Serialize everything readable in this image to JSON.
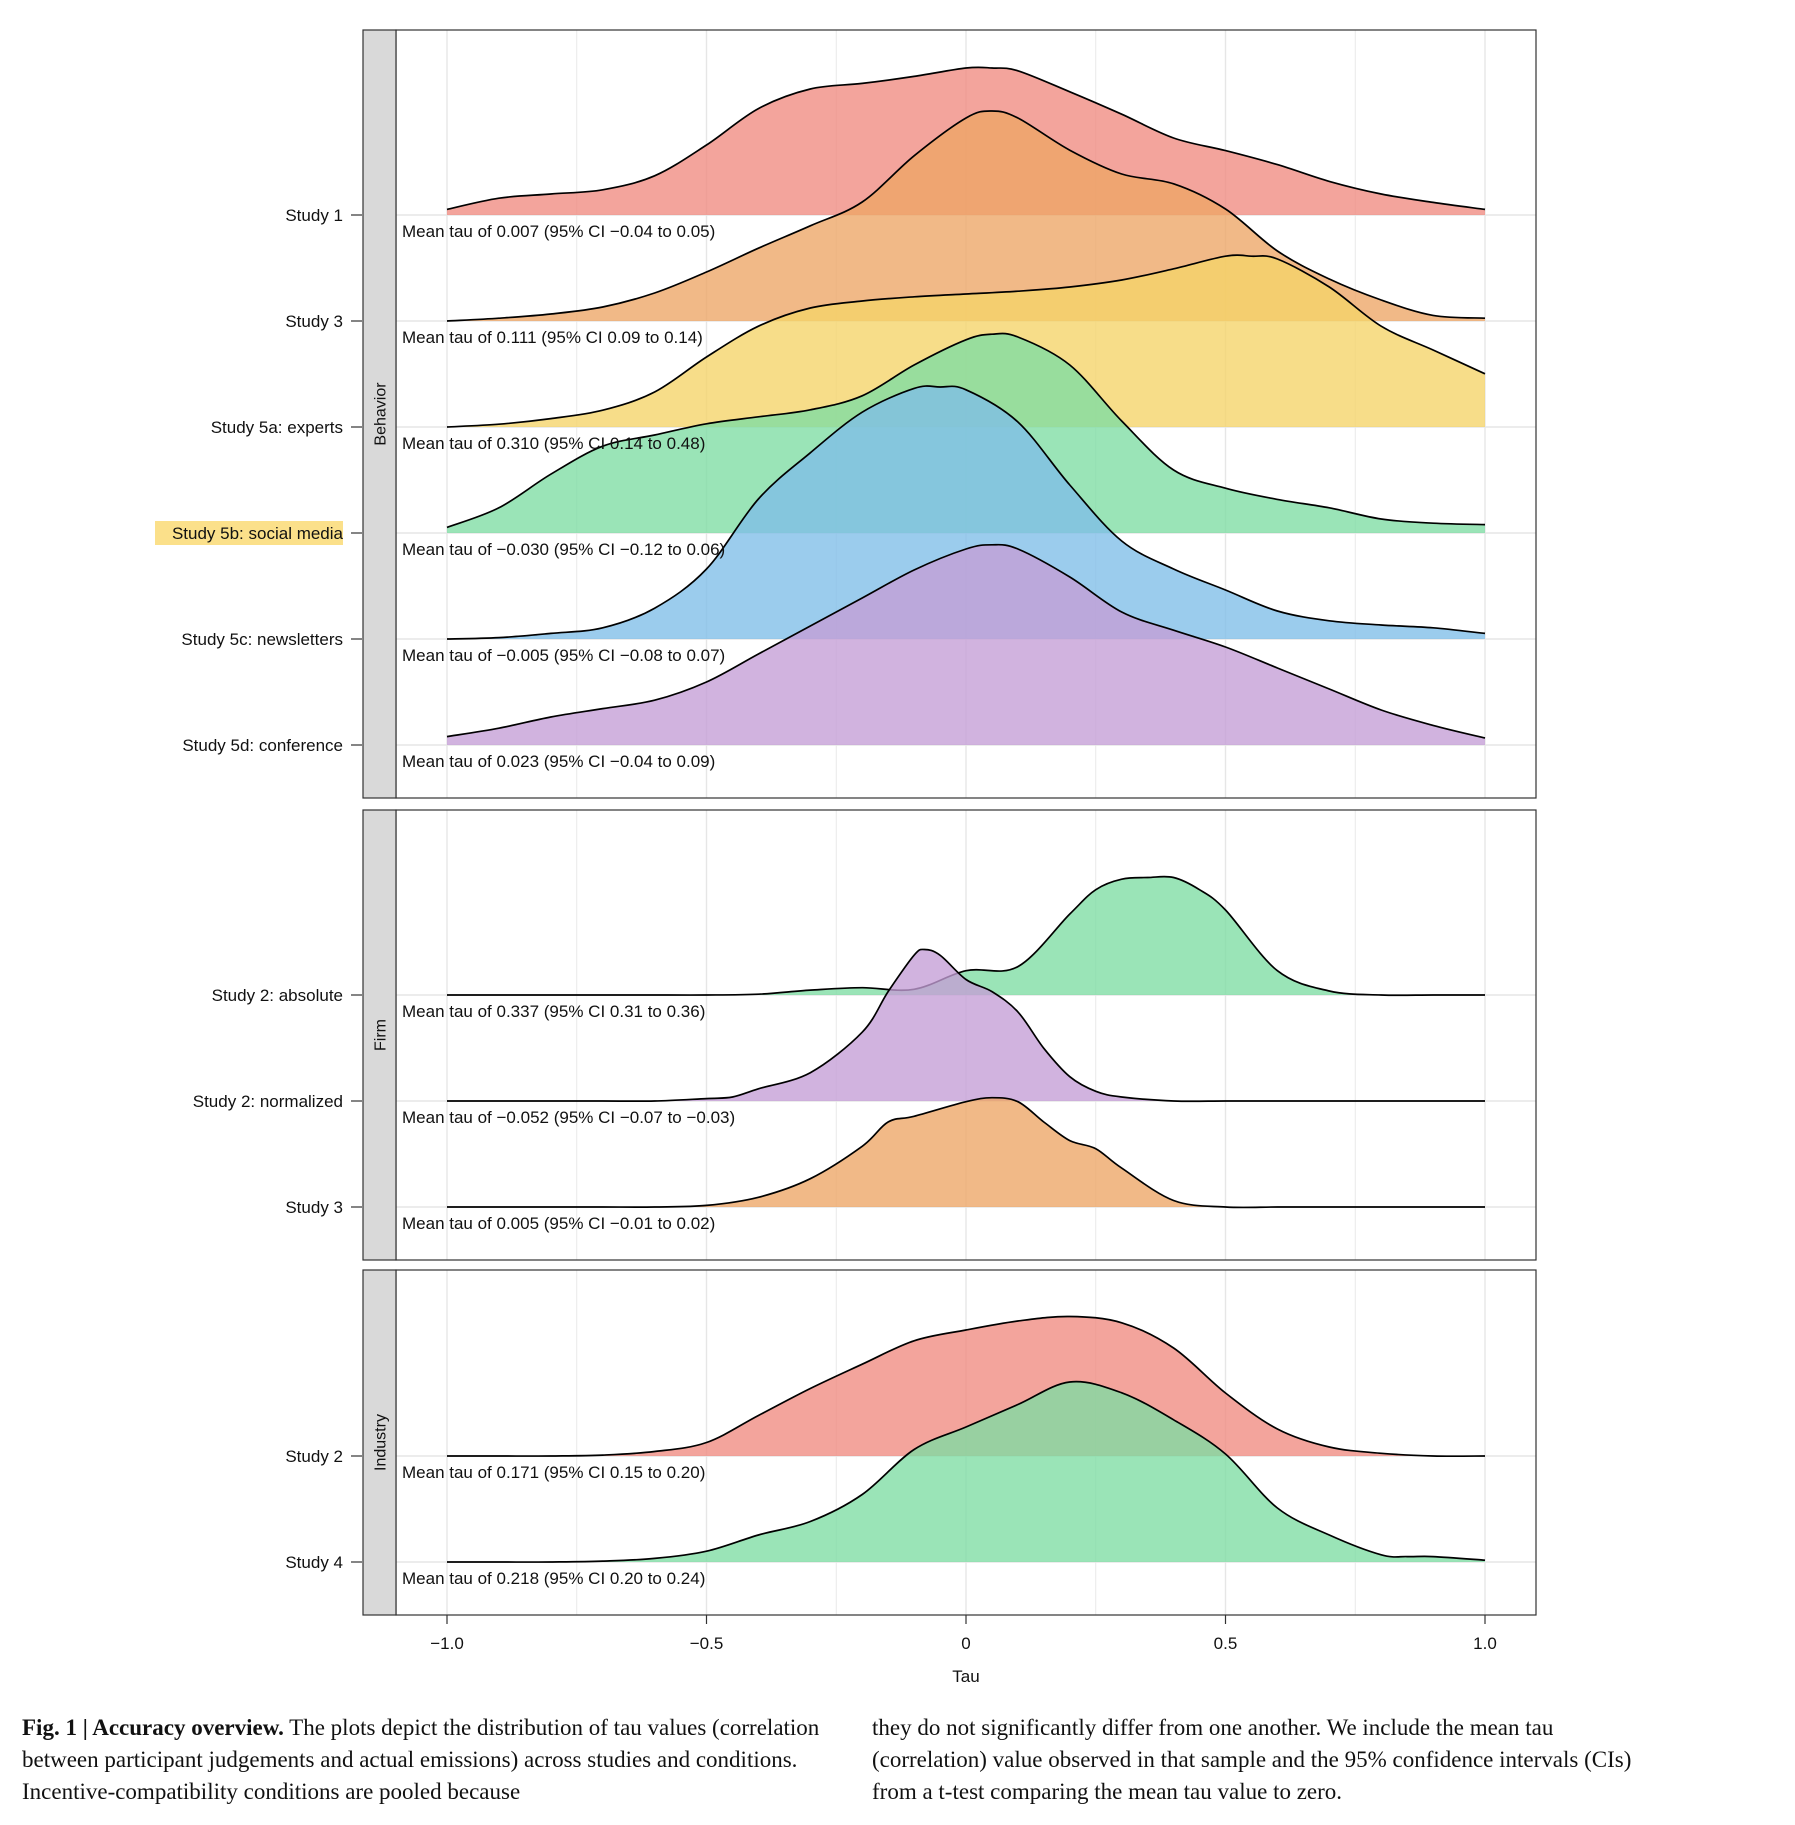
{
  "chart_data": {
    "type": "ridgeline",
    "xlabel": "Tau",
    "xlim": [
      -1.0,
      1.0
    ],
    "x_ticks": [
      "−1.0",
      "−0.5",
      "0",
      "0.5",
      "1.0"
    ],
    "x_tick_values": [
      -1.0,
      -0.5,
      0,
      0.5,
      1.0
    ],
    "grid": true,
    "panels": [
      {
        "strip": "Behavior",
        "rows": [
          {
            "label": "Study 1",
            "color": "#F08A80",
            "annotation": "Mean tau of 0.007 (95% CI −0.04 to 0.05)",
            "x": [
              -1.0,
              -0.9,
              -0.8,
              -0.7,
              -0.6,
              -0.5,
              -0.4,
              -0.3,
              -0.2,
              -0.1,
              0.0,
              0.05,
              0.1,
              0.2,
              0.3,
              0.4,
              0.5,
              0.6,
              0.7,
              0.8,
              0.9,
              1.0
            ],
            "y": [
              0.04,
              0.12,
              0.15,
              0.18,
              0.28,
              0.5,
              0.76,
              0.9,
              0.94,
              0.99,
              1.05,
              1.05,
              1.03,
              0.88,
              0.72,
              0.55,
              0.46,
              0.36,
              0.24,
              0.15,
              0.09,
              0.04
            ]
          },
          {
            "label": "Study 3",
            "color": "#EDA565",
            "annotation": "Mean tau of 0.111 (95% CI 0.09 to 0.14)",
            "x": [
              -1.0,
              -0.9,
              -0.8,
              -0.7,
              -0.6,
              -0.5,
              -0.4,
              -0.3,
              -0.2,
              -0.1,
              0.0,
              0.05,
              0.1,
              0.2,
              0.3,
              0.4,
              0.5,
              0.6,
              0.7,
              0.8,
              0.9,
              1.0
            ],
            "y": [
              0.0,
              0.02,
              0.05,
              0.1,
              0.2,
              0.35,
              0.52,
              0.68,
              0.85,
              1.18,
              1.45,
              1.5,
              1.45,
              1.22,
              1.05,
              0.98,
              0.8,
              0.5,
              0.3,
              0.15,
              0.04,
              0.02
            ]
          },
          {
            "label": "Study 5a: experts",
            "color": "#F5D468",
            "annotation": "Mean tau of 0.310 (95% CI 0.14 to 0.48)",
            "x": [
              -1.0,
              -0.9,
              -0.8,
              -0.7,
              -0.6,
              -0.5,
              -0.4,
              -0.3,
              -0.2,
              -0.1,
              0.0,
              0.1,
              0.2,
              0.3,
              0.4,
              0.5,
              0.55,
              0.6,
              0.7,
              0.8,
              0.9,
              1.0
            ],
            "y": [
              0.0,
              0.02,
              0.06,
              0.12,
              0.25,
              0.5,
              0.72,
              0.85,
              0.9,
              0.93,
              0.95,
              0.97,
              1.0,
              1.05,
              1.13,
              1.22,
              1.22,
              1.2,
              1.0,
              0.72,
              0.55,
              0.38
            ]
          },
          {
            "label": "Study 5b: social media",
            "color": "#7DDDA3",
            "annotation": "Mean tau of −0.030 (95% CI −0.12 to 0.06)",
            "x": [
              -1.0,
              -0.9,
              -0.8,
              -0.7,
              -0.6,
              -0.5,
              -0.4,
              -0.3,
              -0.2,
              -0.1,
              0.0,
              0.05,
              0.1,
              0.2,
              0.3,
              0.4,
              0.5,
              0.6,
              0.7,
              0.8,
              0.9,
              1.0
            ],
            "y": [
              0.04,
              0.18,
              0.42,
              0.62,
              0.7,
              0.78,
              0.83,
              0.88,
              0.98,
              1.2,
              1.38,
              1.42,
              1.4,
              1.2,
              0.8,
              0.45,
              0.32,
              0.24,
              0.18,
              0.1,
              0.07,
              0.06
            ]
          },
          {
            "label": "Study 5c: newsletters",
            "color": "#7FBEE8",
            "annotation": "Mean tau of −0.005 (95% CI −0.08 to 0.07)",
            "x": [
              -1.0,
              -0.9,
              -0.8,
              -0.7,
              -0.6,
              -0.5,
              -0.4,
              -0.3,
              -0.2,
              -0.1,
              -0.05,
              0.0,
              0.1,
              0.2,
              0.3,
              0.4,
              0.5,
              0.6,
              0.7,
              0.8,
              0.9,
              1.0
            ],
            "y": [
              0.0,
              0.01,
              0.04,
              0.08,
              0.22,
              0.5,
              1.0,
              1.33,
              1.62,
              1.79,
              1.8,
              1.78,
              1.55,
              1.1,
              0.7,
              0.5,
              0.35,
              0.2,
              0.13,
              0.1,
              0.08,
              0.04
            ]
          },
          {
            "label": "Study 5d: conference",
            "color": "#C49ED6",
            "annotation": "Mean tau of 0.023 (95% CI −0.04 to 0.09)",
            "x": [
              -1.0,
              -0.9,
              -0.8,
              -0.7,
              -0.6,
              -0.5,
              -0.4,
              -0.3,
              -0.2,
              -0.1,
              0.0,
              0.05,
              0.1,
              0.2,
              0.3,
              0.4,
              0.5,
              0.6,
              0.7,
              0.8,
              0.9,
              1.0
            ],
            "y": [
              0.06,
              0.12,
              0.2,
              0.26,
              0.32,
              0.45,
              0.65,
              0.85,
              1.05,
              1.25,
              1.4,
              1.43,
              1.4,
              1.2,
              0.95,
              0.82,
              0.7,
              0.55,
              0.4,
              0.25,
              0.14,
              0.05
            ]
          }
        ]
      },
      {
        "strip": "Firm",
        "rows": [
          {
            "label": "Study 2: absolute",
            "color": "#7DDDA3",
            "annotation": "Mean tau of 0.337 (95% CI 0.31 to 0.36)",
            "x": [
              -1.0,
              -0.9,
              -0.8,
              -0.7,
              -0.6,
              -0.5,
              -0.4,
              -0.3,
              -0.2,
              -0.1,
              0.0,
              0.1,
              0.2,
              0.25,
              0.3,
              0.35,
              0.4,
              0.45,
              0.5,
              0.6,
              0.7,
              0.8,
              0.9,
              1.0
            ],
            "y": [
              0.0,
              0.0,
              0.0,
              0.0,
              0.0,
              0.0,
              0.01,
              0.06,
              0.09,
              0.07,
              0.3,
              0.35,
              1.0,
              1.3,
              1.43,
              1.45,
              1.45,
              1.3,
              1.05,
              0.3,
              0.05,
              0.0,
              0.0,
              0.0
            ]
          },
          {
            "label": "Study 2: normalized",
            "color": "#C49ED6",
            "annotation": "Mean tau of −0.052 (95% CI −0.07 to −0.03)",
            "x": [
              -1.0,
              -0.9,
              -0.8,
              -0.7,
              -0.6,
              -0.5,
              -0.45,
              -0.4,
              -0.3,
              -0.2,
              -0.15,
              -0.1,
              -0.08,
              -0.05,
              0.0,
              0.05,
              0.1,
              0.15,
              0.2,
              0.25,
              0.3,
              0.4,
              0.5,
              0.6,
              0.7,
              0.8,
              0.9,
              1.0
            ],
            "y": [
              0.0,
              0.0,
              0.0,
              0.0,
              0.0,
              0.03,
              0.05,
              0.15,
              0.35,
              0.85,
              1.35,
              1.8,
              1.87,
              1.8,
              1.5,
              1.35,
              1.1,
              0.65,
              0.3,
              0.12,
              0.05,
              0.0,
              0.0,
              0.0,
              0.0,
              0.0,
              0.0,
              0.0
            ]
          },
          {
            "label": "Study 3",
            "color": "#EDA565",
            "annotation": "Mean tau of 0.005 (95% CI −0.01 to 0.02)",
            "x": [
              -1.0,
              -0.9,
              -0.8,
              -0.7,
              -0.6,
              -0.5,
              -0.4,
              -0.3,
              -0.2,
              -0.15,
              -0.1,
              0.0,
              0.05,
              0.1,
              0.15,
              0.2,
              0.25,
              0.3,
              0.4,
              0.5,
              0.6,
              0.7,
              0.8,
              0.9,
              1.0
            ],
            "y": [
              0.0,
              0.0,
              0.0,
              0.0,
              0.0,
              0.02,
              0.12,
              0.35,
              0.75,
              1.05,
              1.12,
              1.3,
              1.35,
              1.3,
              1.05,
              0.82,
              0.72,
              0.48,
              0.08,
              0.0,
              0.0,
              0.0,
              0.0,
              0.0,
              0.0
            ]
          }
        ]
      },
      {
        "strip": "Industry",
        "rows": [
          {
            "label": "Study 2",
            "color": "#F08A80",
            "annotation": "Mean tau of 0.171 (95% CI 0.15 to 0.20)",
            "x": [
              -1.0,
              -0.9,
              -0.8,
              -0.7,
              -0.6,
              -0.5,
              -0.4,
              -0.3,
              -0.2,
              -0.1,
              0.0,
              0.1,
              0.2,
              0.3,
              0.4,
              0.5,
              0.6,
              0.7,
              0.8,
              0.9,
              1.0
            ],
            "y": [
              0.0,
              0.0,
              0.0,
              0.01,
              0.05,
              0.15,
              0.45,
              0.75,
              1.02,
              1.28,
              1.4,
              1.5,
              1.55,
              1.48,
              1.2,
              0.7,
              0.3,
              0.1,
              0.03,
              0.0,
              0.0
            ]
          },
          {
            "label": "Study 4",
            "color": "#7DDDA3",
            "annotation": "Mean tau of 0.218 (95% CI 0.20 to 0.24)",
            "x": [
              -1.0,
              -0.9,
              -0.8,
              -0.7,
              -0.6,
              -0.5,
              -0.4,
              -0.3,
              -0.2,
              -0.1,
              0.0,
              0.1,
              0.2,
              0.3,
              0.4,
              0.5,
              0.6,
              0.7,
              0.8,
              0.85,
              0.9,
              1.0
            ],
            "y": [
              0.0,
              0.0,
              0.0,
              0.01,
              0.04,
              0.12,
              0.3,
              0.45,
              0.75,
              1.25,
              1.5,
              1.75,
              2.0,
              1.88,
              1.58,
              1.2,
              0.6,
              0.3,
              0.08,
              0.06,
              0.06,
              0.02
            ]
          }
        ]
      }
    ]
  },
  "caption": {
    "label": "Fig. 1 | Accuracy overview.",
    "left_text": "The plots depict the distribution of tau values (correlation between participant judgements and actual emissions) across studies and conditions. Incentive-compatibility conditions are pooled because",
    "right_text": "they do not significantly differ from one another. We include the mean tau (correlation) value observed in that sample and the 95% confidence intervals (CIs) from a t-test comparing the mean tau value to zero."
  }
}
